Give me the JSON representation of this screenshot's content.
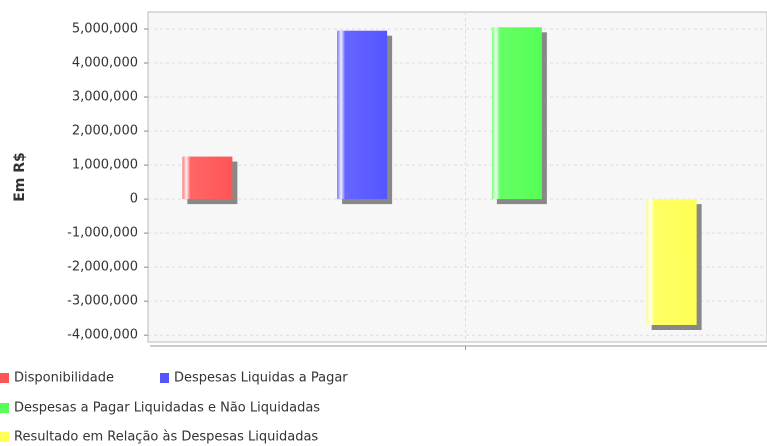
{
  "chart_data": {
    "type": "bar",
    "y_label": "Em R$",
    "categories": [
      null
    ],
    "series": [
      {
        "name": "Disponibilidade",
        "color": "#ff5555",
        "values": [
          1250000
        ]
      },
      {
        "name": "Despesas Liquidas a Pagar",
        "color": "#5555ff",
        "values": [
          4950000
        ]
      },
      {
        "name": "Despesas a Pagar Liquidadas e Não Liquidadas",
        "color": "#55ff55",
        "values": [
          5050000
        ]
      },
      {
        "name": "Resultado em Relação às Despesas Liquidadas",
        "color": "#ffff55",
        "values": [
          -3700000
        ]
      }
    ],
    "ylim": [
      -4200000,
      5500000
    ],
    "yticks": [
      {
        "value": -4000000,
        "label": "-4,000,000"
      },
      {
        "value": -3000000,
        "label": "-3,000,000"
      },
      {
        "value": -2000000,
        "label": "-2,000,000"
      },
      {
        "value": -1000000,
        "label": "-1,000,000"
      },
      0,
      {
        "value": 1000000,
        "label": "1,000,000"
      },
      {
        "value": 2000000,
        "label": "2,000,000"
      },
      {
        "value": 3000000,
        "label": "3,000,000"
      },
      {
        "value": 4000000,
        "label": "4,000,000"
      },
      {
        "value": 5000000,
        "label": "5,000,000"
      }
    ],
    "grid": true,
    "legend": "bottom"
  }
}
